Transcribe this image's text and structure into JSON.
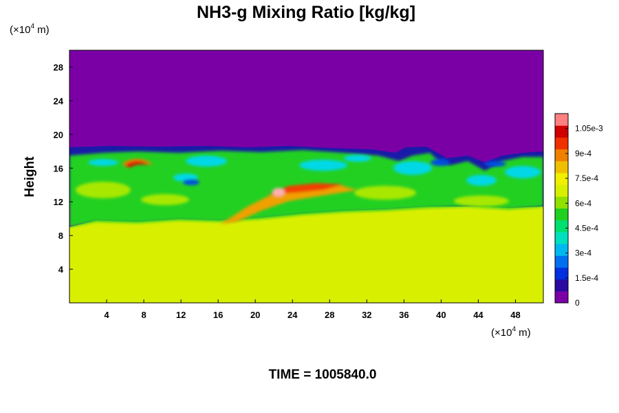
{
  "chart_data": {
    "type": "heatmap",
    "title": "NH3-g Mixing Ratio [kg/kg]",
    "ylabel": "Height",
    "x_unit": "(×10",
    "x_unit_exp": "4",
    "x_unit_tail": " m)",
    "y_unit": "(×10",
    "y_unit_exp": "4",
    "y_unit_tail": " m)",
    "xlim": [
      0,
      51
    ],
    "ylim": [
      0,
      30
    ],
    "xticks": [
      4,
      8,
      12,
      16,
      20,
      24,
      28,
      32,
      36,
      40,
      44,
      48
    ],
    "yticks": [
      4,
      8,
      12,
      16,
      20,
      24,
      28
    ],
    "time_label": "TIME = 1005840.0",
    "colorbar": {
      "ticks": [
        {
          "value": 0,
          "label": "0"
        },
        {
          "value": 0.00015,
          "label": "1.5e-4"
        },
        {
          "value": 0.0003,
          "label": "3e-4"
        },
        {
          "value": 0.00045,
          "label": "4.5e-4"
        },
        {
          "value": 0.0006,
          "label": "6e-4"
        },
        {
          "value": 0.00075,
          "label": "7.5e-4"
        },
        {
          "value": 0.0009,
          "label": "9e-4"
        },
        {
          "value": 0.00105,
          "label": "1.05e-3"
        }
      ],
      "vmin": 0,
      "vmax": 0.00114,
      "colors": [
        "#7a00a6",
        "#2a0aa0",
        "#0030e0",
        "#0070f0",
        "#00b8f0",
        "#00e0c0",
        "#00e070",
        "#20d020",
        "#90e000",
        "#d8f000",
        "#f0f000",
        "#f0c000",
        "#f08000",
        "#f03000",
        "#d00000",
        "#ff8080"
      ]
    },
    "regions": {
      "lower_layer_value": 0.00076,
      "upper_layer_value": 0.0,
      "boundary_height_approx": 17.5,
      "lower_layer_top_approx": 10.5
    }
  }
}
